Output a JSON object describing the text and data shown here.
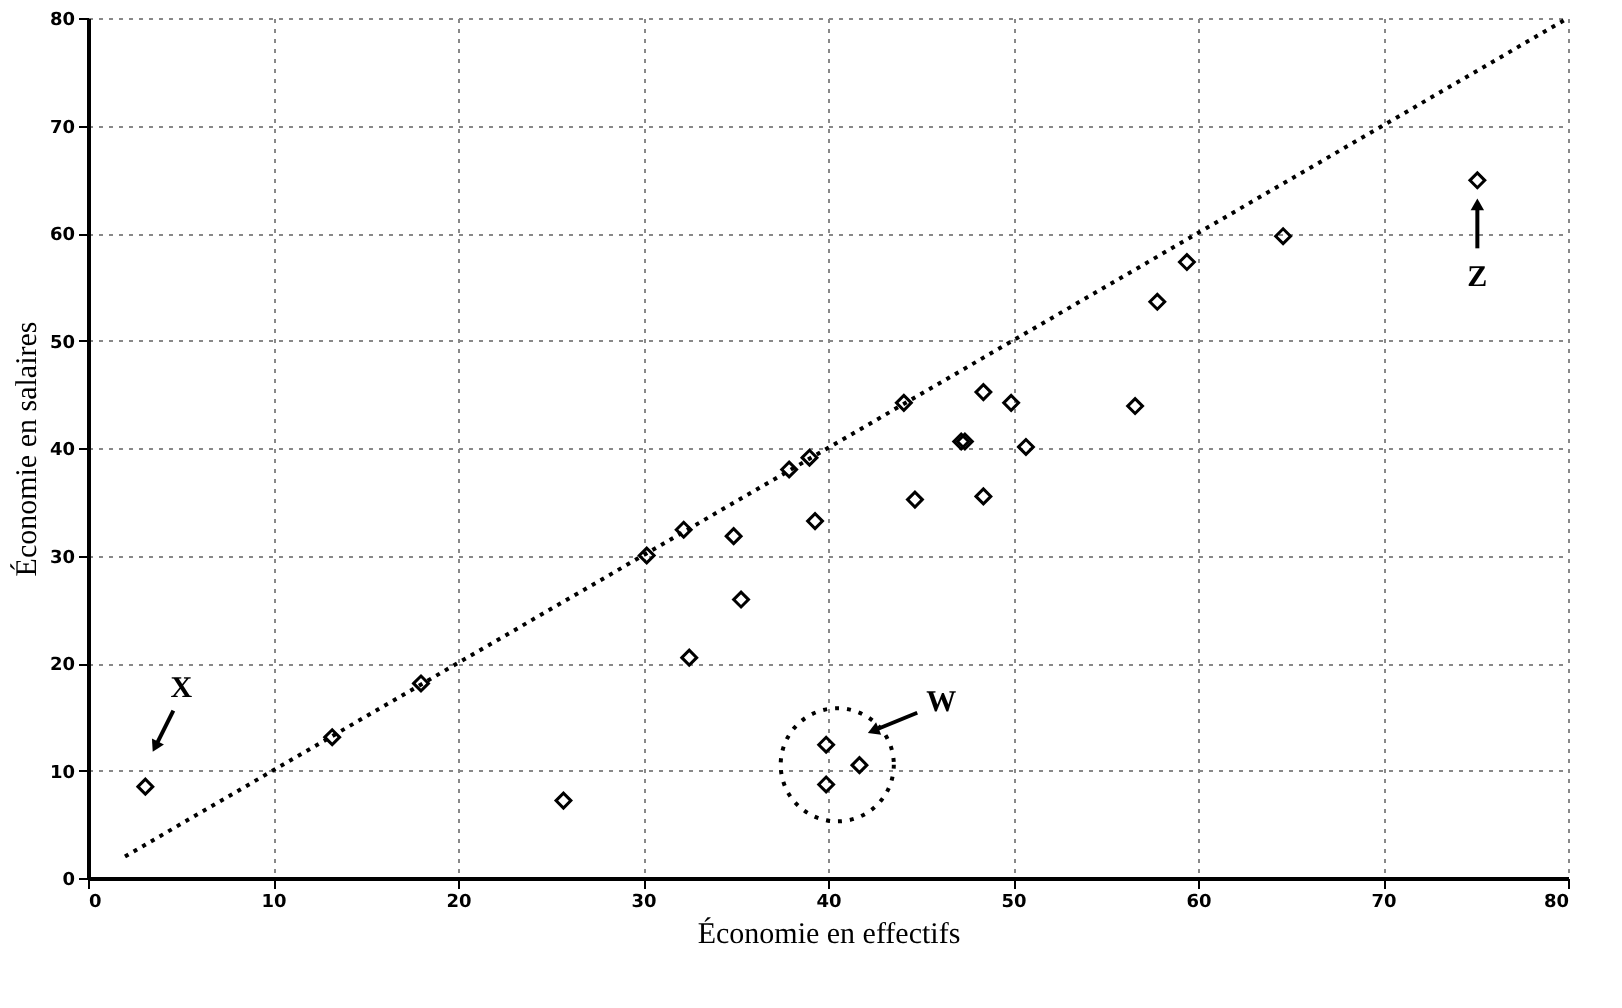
{
  "chart_data": {
    "type": "scatter",
    "xlabel": "Économie en effectifs",
    "ylabel": "Économie en salaires",
    "xlim": [
      0,
      80
    ],
    "ylim": [
      0,
      80
    ],
    "xticks": [
      0,
      10,
      20,
      30,
      40,
      50,
      60,
      70,
      80
    ],
    "yticks": [
      0,
      10,
      20,
      30,
      40,
      50,
      60,
      70,
      80
    ],
    "grid": true,
    "marker": "diamond",
    "series": [
      {
        "color": "#000000",
        "x": [
          3.1,
          13.2,
          18.0,
          25.7,
          30.2,
          32.2,
          32.5,
          34.9,
          35.3,
          37.9,
          39.0,
          39.3,
          39.9,
          39.9,
          41.7,
          44.7,
          44.1,
          47.2,
          47.4,
          48.4,
          48.4,
          49.9,
          50.7,
          56.6,
          57.8,
          59.4,
          64.6,
          75.1
        ],
        "values": [
          8.5,
          13.1,
          18.1,
          7.2,
          30.0,
          32.4,
          20.5,
          31.8,
          25.9,
          38.0,
          39.1,
          33.2,
          12.4,
          8.7,
          10.5,
          35.2,
          44.2,
          40.6,
          40.6,
          45.2,
          35.5,
          44.2,
          40.1,
          43.9,
          53.6,
          57.3,
          59.7,
          64.9
        ]
      },
      {
        "type": "line",
        "color": "#000000",
        "line_style": "dotted",
        "marker": "none",
        "x": [
          2,
          80
        ],
        "values": [
          2,
          80
        ]
      }
    ],
    "annotations": [
      {
        "text": "X",
        "x": 3.1,
        "y": 8.5
      },
      "W",
      {
        "text": "Z",
        "x": 75.1,
        "y": 64.9
      }
    ]
  }
}
